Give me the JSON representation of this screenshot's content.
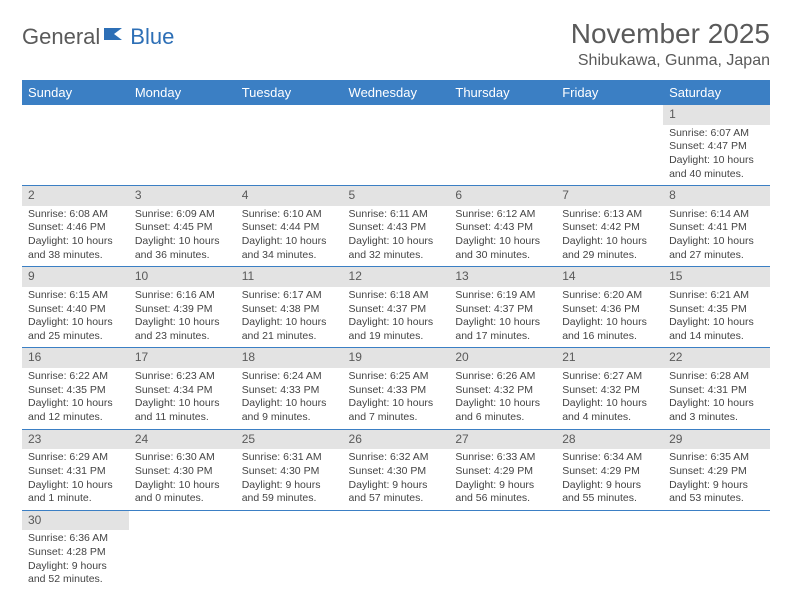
{
  "logo": {
    "part1": "General",
    "part2": "Blue"
  },
  "title": "November 2025",
  "location": "Shibukawa, Gunma, Japan",
  "colors": {
    "header_bg": "#3b7fc4",
    "header_text": "#ffffff",
    "daynum_bg": "#e3e3e3",
    "border": "#3b7fc4",
    "page_bg": "#ffffff",
    "text": "#444444",
    "title_color": "#5a5a5a"
  },
  "weekdays": [
    "Sunday",
    "Monday",
    "Tuesday",
    "Wednesday",
    "Thursday",
    "Friday",
    "Saturday"
  ],
  "weeks": [
    [
      null,
      null,
      null,
      null,
      null,
      null,
      {
        "n": "1",
        "sr": "6:07 AM",
        "ss": "4:47 PM",
        "dl": "10 hours and 40 minutes."
      }
    ],
    [
      {
        "n": "2",
        "sr": "6:08 AM",
        "ss": "4:46 PM",
        "dl": "10 hours and 38 minutes."
      },
      {
        "n": "3",
        "sr": "6:09 AM",
        "ss": "4:45 PM",
        "dl": "10 hours and 36 minutes."
      },
      {
        "n": "4",
        "sr": "6:10 AM",
        "ss": "4:44 PM",
        "dl": "10 hours and 34 minutes."
      },
      {
        "n": "5",
        "sr": "6:11 AM",
        "ss": "4:43 PM",
        "dl": "10 hours and 32 minutes."
      },
      {
        "n": "6",
        "sr": "6:12 AM",
        "ss": "4:43 PM",
        "dl": "10 hours and 30 minutes."
      },
      {
        "n": "7",
        "sr": "6:13 AM",
        "ss": "4:42 PM",
        "dl": "10 hours and 29 minutes."
      },
      {
        "n": "8",
        "sr": "6:14 AM",
        "ss": "4:41 PM",
        "dl": "10 hours and 27 minutes."
      }
    ],
    [
      {
        "n": "9",
        "sr": "6:15 AM",
        "ss": "4:40 PM",
        "dl": "10 hours and 25 minutes."
      },
      {
        "n": "10",
        "sr": "6:16 AM",
        "ss": "4:39 PM",
        "dl": "10 hours and 23 minutes."
      },
      {
        "n": "11",
        "sr": "6:17 AM",
        "ss": "4:38 PM",
        "dl": "10 hours and 21 minutes."
      },
      {
        "n": "12",
        "sr": "6:18 AM",
        "ss": "4:37 PM",
        "dl": "10 hours and 19 minutes."
      },
      {
        "n": "13",
        "sr": "6:19 AM",
        "ss": "4:37 PM",
        "dl": "10 hours and 17 minutes."
      },
      {
        "n": "14",
        "sr": "6:20 AM",
        "ss": "4:36 PM",
        "dl": "10 hours and 16 minutes."
      },
      {
        "n": "15",
        "sr": "6:21 AM",
        "ss": "4:35 PM",
        "dl": "10 hours and 14 minutes."
      }
    ],
    [
      {
        "n": "16",
        "sr": "6:22 AM",
        "ss": "4:35 PM",
        "dl": "10 hours and 12 minutes."
      },
      {
        "n": "17",
        "sr": "6:23 AM",
        "ss": "4:34 PM",
        "dl": "10 hours and 11 minutes."
      },
      {
        "n": "18",
        "sr": "6:24 AM",
        "ss": "4:33 PM",
        "dl": "10 hours and 9 minutes."
      },
      {
        "n": "19",
        "sr": "6:25 AM",
        "ss": "4:33 PM",
        "dl": "10 hours and 7 minutes."
      },
      {
        "n": "20",
        "sr": "6:26 AM",
        "ss": "4:32 PM",
        "dl": "10 hours and 6 minutes."
      },
      {
        "n": "21",
        "sr": "6:27 AM",
        "ss": "4:32 PM",
        "dl": "10 hours and 4 minutes."
      },
      {
        "n": "22",
        "sr": "6:28 AM",
        "ss": "4:31 PM",
        "dl": "10 hours and 3 minutes."
      }
    ],
    [
      {
        "n": "23",
        "sr": "6:29 AM",
        "ss": "4:31 PM",
        "dl": "10 hours and 1 minute."
      },
      {
        "n": "24",
        "sr": "6:30 AM",
        "ss": "4:30 PM",
        "dl": "10 hours and 0 minutes."
      },
      {
        "n": "25",
        "sr": "6:31 AM",
        "ss": "4:30 PM",
        "dl": "9 hours and 59 minutes."
      },
      {
        "n": "26",
        "sr": "6:32 AM",
        "ss": "4:30 PM",
        "dl": "9 hours and 57 minutes."
      },
      {
        "n": "27",
        "sr": "6:33 AM",
        "ss": "4:29 PM",
        "dl": "9 hours and 56 minutes."
      },
      {
        "n": "28",
        "sr": "6:34 AM",
        "ss": "4:29 PM",
        "dl": "9 hours and 55 minutes."
      },
      {
        "n": "29",
        "sr": "6:35 AM",
        "ss": "4:29 PM",
        "dl": "9 hours and 53 minutes."
      }
    ],
    [
      {
        "n": "30",
        "sr": "6:36 AM",
        "ss": "4:28 PM",
        "dl": "9 hours and 52 minutes."
      },
      null,
      null,
      null,
      null,
      null,
      null
    ]
  ],
  "labels": {
    "sunrise": "Sunrise: ",
    "sunset": "Sunset: ",
    "daylight": "Daylight: "
  }
}
